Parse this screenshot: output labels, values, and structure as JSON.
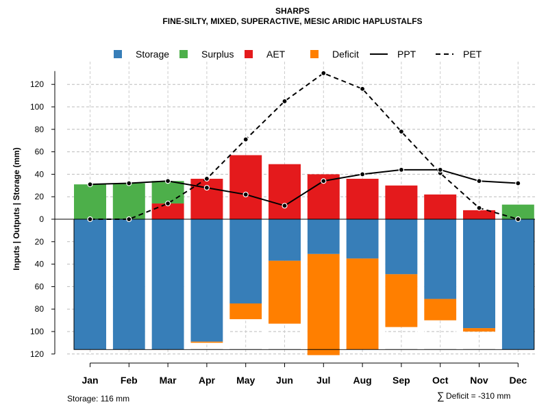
{
  "chart_data": {
    "type": "bar",
    "title": "SHARPS",
    "subtitle": "FINE-SILTY, MIXED, SUPERACTIVE, MESIC ARIDIC HAPLUSTALFS",
    "ylabel": "Inputs | Outputs | Storage    (mm)",
    "ylim": [
      -120,
      130
    ],
    "y_ticks": [
      120,
      100,
      80,
      60,
      40,
      20,
      0,
      -20,
      -40,
      -60,
      -80,
      -100,
      -120
    ],
    "y_tick_labels": [
      "120",
      "100",
      "80",
      "60",
      "40",
      "20",
      "0",
      "20",
      "40",
      "60",
      "80",
      "100",
      "120"
    ],
    "grid": true,
    "categories": [
      "Jan",
      "Feb",
      "Mar",
      "Apr",
      "May",
      "Jun",
      "Jul",
      "Aug",
      "Sep",
      "Oct",
      "Nov",
      "Dec"
    ],
    "legend": [
      {
        "name": "Storage",
        "kind": "box",
        "color": "#377EB8"
      },
      {
        "name": "Surplus",
        "kind": "box",
        "color": "#4DAF4A"
      },
      {
        "name": "AET",
        "kind": "box",
        "color": "#E41A1C"
      },
      {
        "name": "Deficit",
        "kind": "box",
        "color": "#FF7F00"
      },
      {
        "name": "PPT",
        "kind": "solid"
      },
      {
        "name": "PET",
        "kind": "dashed"
      }
    ],
    "series": [
      {
        "name": "AET",
        "color": "#E41A1C",
        "values": [
          0,
          0,
          14,
          36,
          57,
          49,
          40,
          36,
          30,
          22,
          8,
          0
        ]
      },
      {
        "name": "Surplus",
        "color": "#4DAF4A",
        "values": [
          31,
          32,
          20,
          0,
          0,
          0,
          0,
          0,
          0,
          0,
          0,
          13
        ]
      },
      {
        "name": "Storage",
        "color": "#377EB8",
        "values": [
          116,
          116,
          116,
          109,
          75,
          37,
          31,
          35,
          49,
          71,
          97,
          116
        ]
      },
      {
        "name": "Deficit",
        "color": "#FF7F00",
        "values": [
          0,
          0,
          0,
          1,
          14,
          56,
          90,
          81,
          47,
          19,
          3,
          0
        ]
      },
      {
        "name": "PPT",
        "values": [
          31,
          32,
          34,
          28,
          22,
          12,
          34,
          40,
          44,
          44,
          34,
          32
        ]
      },
      {
        "name": "PET",
        "values": [
          0,
          0,
          14,
          36,
          71,
          105,
          130,
          116,
          78,
          41,
          10,
          0
        ]
      }
    ],
    "storage_note": "Storage: 116 mm",
    "deficit_note": "Deficit = -310 mm",
    "deficit_symbol": "∑"
  }
}
